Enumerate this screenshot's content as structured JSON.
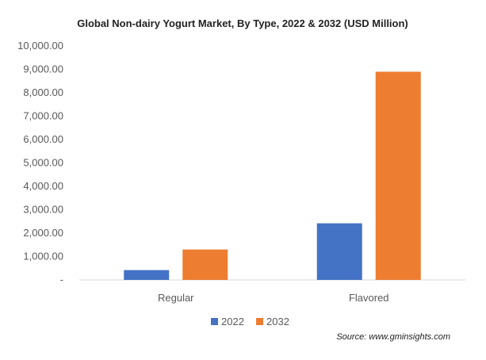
{
  "chart_data": {
    "type": "bar",
    "title": "Global Non-dairy Yogurt Market, By Type, 2022  & 2032  (USD Million)",
    "xlabel": "",
    "ylabel": "",
    "categories": [
      "Regular",
      "Flavored"
    ],
    "series": [
      {
        "name": "2022",
        "color": "#4472C4",
        "values": [
          420,
          2420
        ]
      },
      {
        "name": "2032",
        "color": "#ED7D31",
        "values": [
          1300,
          8900
        ]
      }
    ],
    "ylim": [
      0,
      10000
    ],
    "y_ticks": [
      {
        "value": 0,
        "label": "-"
      },
      {
        "value": 1000,
        "label": "1,000.00"
      },
      {
        "value": 2000,
        "label": "2,000.00"
      },
      {
        "value": 3000,
        "label": "3,000.00"
      },
      {
        "value": 4000,
        "label": "4,000.00"
      },
      {
        "value": 5000,
        "label": "5,000.00"
      },
      {
        "value": 6000,
        "label": "6,000.00"
      },
      {
        "value": 7000,
        "label": "7,000.00"
      },
      {
        "value": 8000,
        "label": "8,000.00"
      },
      {
        "value": 9000,
        "label": "9,000.00"
      },
      {
        "value": 10000,
        "label": "10,000.00"
      }
    ],
    "grid": false,
    "legend_position": "bottom",
    "source": "Source: www.gminsights.com"
  }
}
